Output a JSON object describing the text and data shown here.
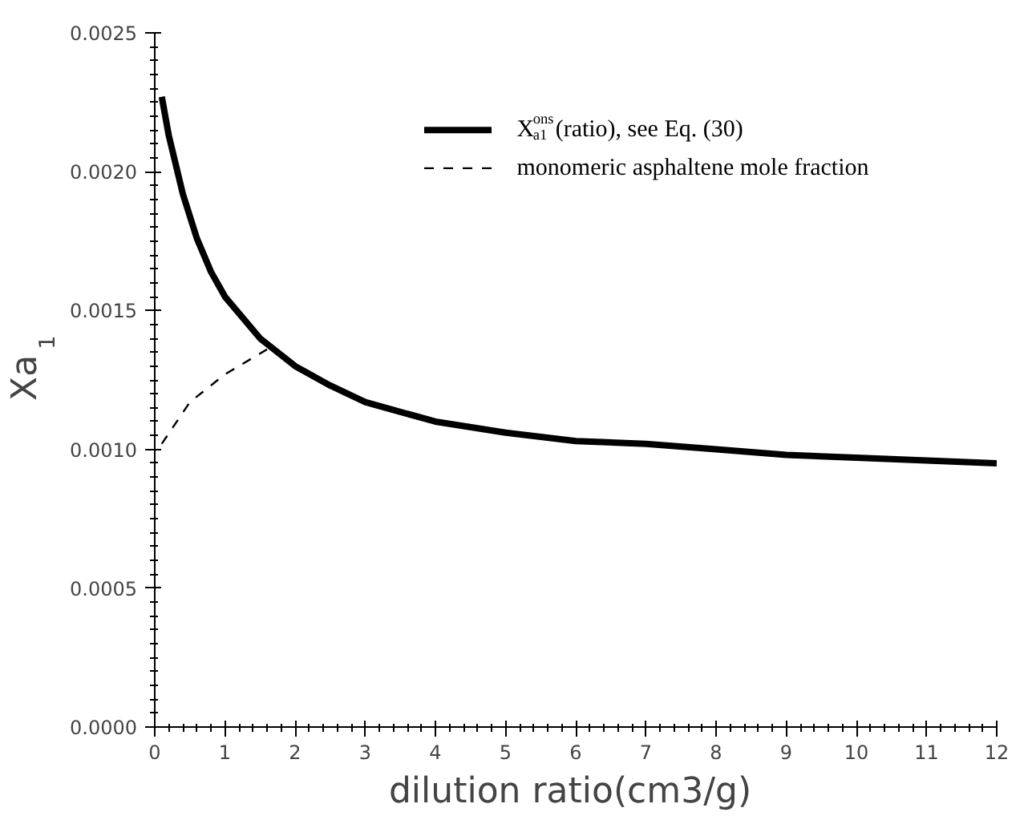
{
  "chart_data": {
    "type": "line",
    "xlabel": "dilution  ratio(cm3/g)",
    "ylabel": "Xa$_{1}$",
    "xlim": [
      0,
      12
    ],
    "ylim": [
      0,
      0.0025
    ],
    "xticks": [
      0,
      1,
      2,
      3,
      4,
      5,
      6,
      7,
      8,
      9,
      10,
      11,
      12
    ],
    "yticks": [
      {
        "value": 0,
        "label": "0.0000"
      },
      {
        "value": 0.0005,
        "label": "0.0005"
      },
      {
        "value": 0.001,
        "label": "0.0010"
      },
      {
        "value": 0.0015,
        "label": "0.0015"
      },
      {
        "value": 0.002,
        "label": "0.0020"
      },
      {
        "value": 0.0025,
        "label": "0.0025"
      }
    ],
    "grid": false,
    "legend": "top right",
    "series": [
      {
        "name": "X$^{ons}$$_{a1}$(ratio),  see Eq. (30)",
        "color": "#000000",
        "line_style": "solid",
        "x": [
          0.1,
          0.2,
          0.4,
          0.6,
          0.8,
          1.0,
          1.5,
          2,
          2.5,
          3,
          4,
          5,
          6,
          7,
          8,
          9,
          10,
          11,
          12
        ],
        "values": [
          0.00227,
          0.00213,
          0.00192,
          0.00176,
          0.00164,
          0.00155,
          0.0014,
          0.0013,
          0.00123,
          0.00117,
          0.0011,
          0.00106,
          0.00103,
          0.00102,
          0.001,
          0.00098,
          0.00097,
          0.00096,
          0.00095
        ]
      },
      {
        "name": "monomeric asphaltene mole fraction",
        "color": "#000000",
        "line_style": "dashed",
        "x": [
          0.1,
          0.5,
          1.0,
          1.4,
          1.6
        ],
        "values": [
          0.00102,
          0.00117,
          0.00127,
          0.00133,
          0.00136
        ]
      }
    ]
  }
}
